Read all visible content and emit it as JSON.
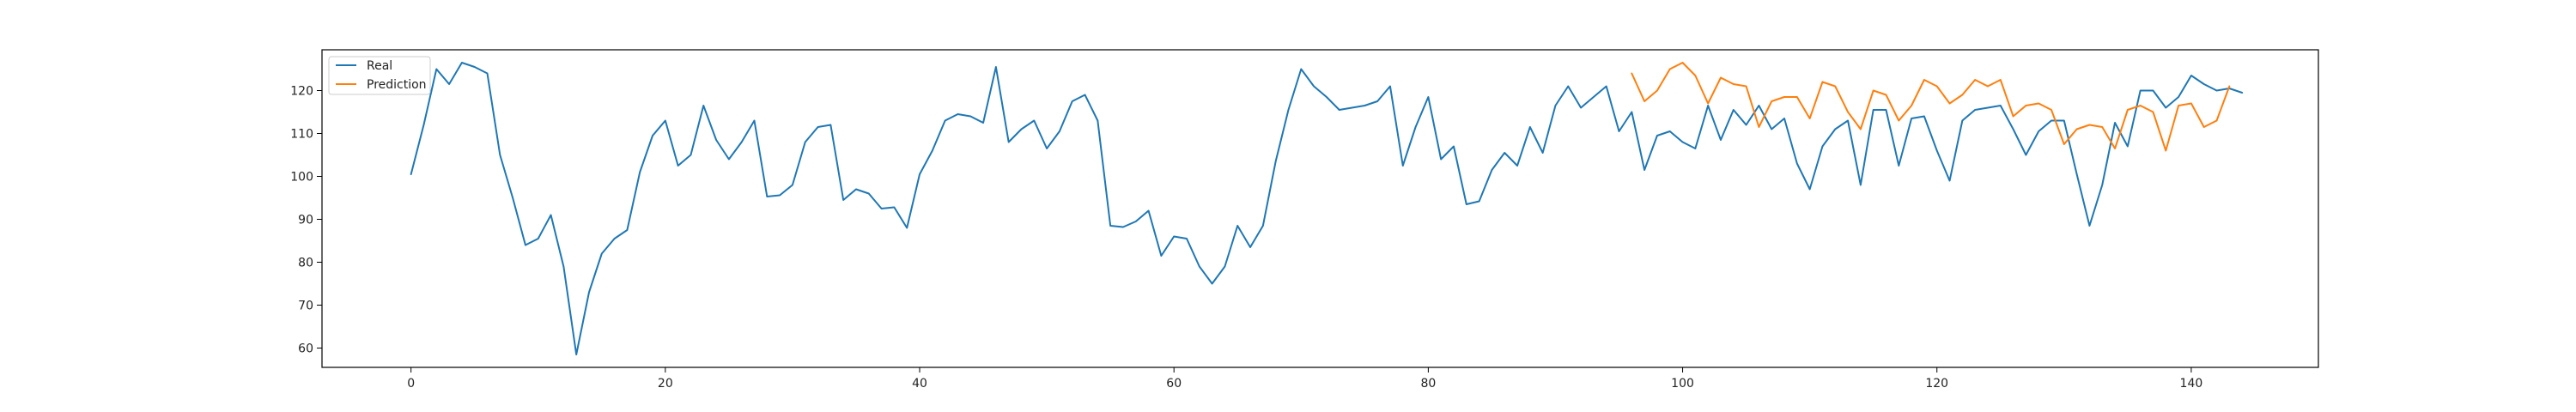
{
  "chart_data": {
    "type": "line",
    "title": "",
    "xlabel": "",
    "ylabel": "",
    "xlim": [
      -7,
      150
    ],
    "ylim": [
      55.5,
      129.5
    ],
    "xticks": [
      "0",
      "20",
      "40",
      "60",
      "80",
      "100",
      "120",
      "140"
    ],
    "yticks": [
      "60",
      "70",
      "80",
      "90",
      "100",
      "110",
      "120"
    ],
    "grid": false,
    "legend_position": "top-left",
    "series": [
      {
        "name": "Real",
        "color": "#1f77b4",
        "x_start": 0,
        "values": [
          100.5,
          112,
          125,
          121.5,
          126.5,
          125.5,
          124,
          105,
          95,
          84,
          85.5,
          91,
          79,
          58.5,
          73,
          82,
          85.5,
          87.5,
          101,
          109.5,
          113,
          102.5,
          105,
          116.5,
          108.5,
          104,
          108,
          113,
          95.3,
          95.6,
          98,
          108,
          111.5,
          112,
          94.5,
          97,
          96,
          92.5,
          92.8,
          88,
          100.5,
          106,
          113,
          114.5,
          114,
          112.5,
          125.5,
          108,
          111,
          113,
          106.5,
          110.5,
          117.5,
          119,
          113,
          88.5,
          88.2,
          89.5,
          92,
          81.5,
          86,
          85.5,
          79,
          75,
          79,
          88.5,
          83.5,
          88.5,
          103.5,
          115.5,
          125,
          121,
          118.5,
          115.5,
          116,
          116.5,
          117.5,
          121,
          102.5,
          111.5,
          118.5,
          104,
          107,
          93.5,
          94.2,
          101.5,
          105.5,
          102.5,
          111.5,
          105.5,
          116.5,
          121,
          116,
          118.5,
          121,
          110.5,
          115,
          101.5,
          109.5,
          110.5,
          108,
          106.5,
          116.5,
          108.5,
          115.5,
          112,
          116.5,
          111,
          113.5,
          103,
          97,
          107,
          111,
          113,
          98,
          115.5,
          115.5,
          102.5,
          113.5,
          114,
          106,
          99,
          113,
          115.5,
          116,
          116.5,
          111,
          105,
          110.5,
          113,
          113,
          100.5,
          88.5,
          98,
          112.5,
          107,
          120,
          120,
          116,
          118.5,
          123.5,
          121.5,
          120,
          120.5,
          119.5
        ]
      },
      {
        "name": "Prediction",
        "color": "#ff7f0e",
        "x_start": 96,
        "values": [
          124,
          117.5,
          120,
          125,
          126.5,
          123.5,
          117,
          123,
          121.5,
          121,
          111.5,
          117.5,
          118.5,
          118.5,
          113.5,
          122,
          121,
          115,
          111,
          120,
          119,
          113,
          116.5,
          122.5,
          121,
          117,
          119,
          122.5,
          121,
          122.5,
          114,
          116.5,
          117,
          115.5,
          107.5,
          111,
          112,
          111.5,
          106.5,
          115.5,
          116.5,
          115,
          106,
          116.5,
          117,
          111.5,
          113,
          121
        ]
      }
    ]
  }
}
